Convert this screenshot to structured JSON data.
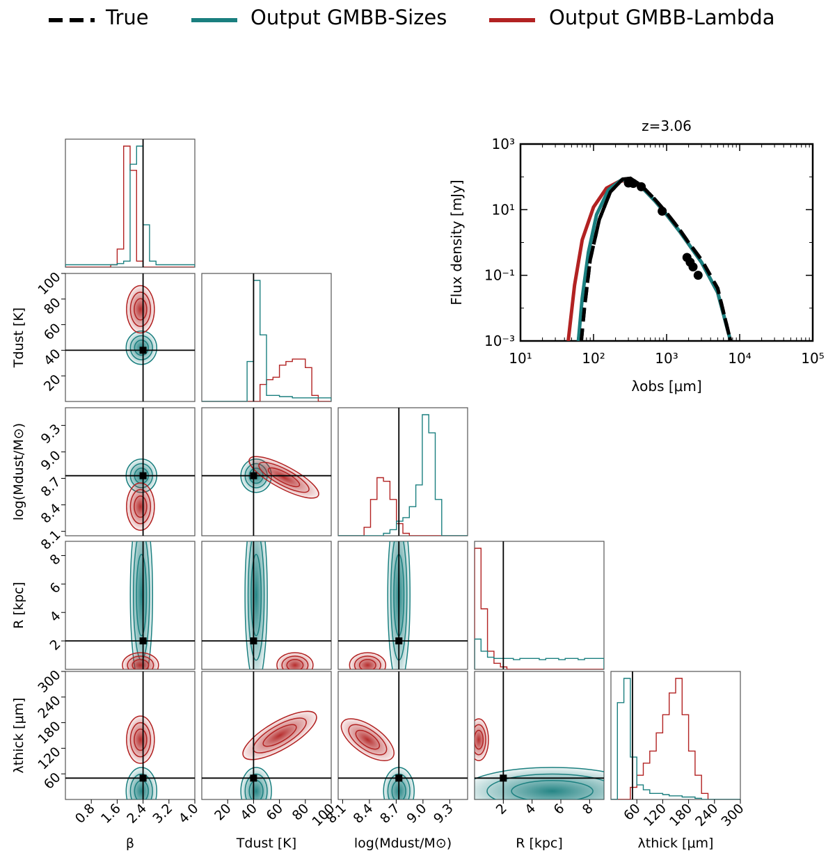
{
  "legend": [
    {
      "label": "True",
      "color": "#000000",
      "style": "dashed"
    },
    {
      "label": "Output GMBB-Sizes",
      "color": "#1a7f7f",
      "style": "solid"
    },
    {
      "label": "Output GMBB-Lambda",
      "color": "#b22222",
      "style": "solid"
    }
  ],
  "colors": {
    "sizes": "#1a7f7f",
    "lambda": "#b22222",
    "truth": "#000000"
  },
  "chart_data": [
    {
      "type": "line",
      "title": "z=3.06",
      "xlabel": "λobs [μm]",
      "ylabel": "Flux density [mJy]",
      "xscale": "log",
      "yscale": "log",
      "xlim": [
        10,
        100000
      ],
      "ylim": [
        0.001,
        1000
      ],
      "xticks": [
        "10¹",
        "10²",
        "10³",
        "10⁴",
        "10⁵"
      ],
      "yticks": [
        "10⁻³",
        "10⁻¹",
        "10¹",
        "10³"
      ],
      "series": [
        {
          "name": "True",
          "x": [
            68,
            75,
            90,
            120,
            170,
            250,
            320,
            450,
            700,
            1000,
            1500,
            2000,
            3000,
            5000,
            7500
          ],
          "y": [
            0.001,
            0.01,
            0.3,
            5,
            35,
            85,
            90,
            55,
            20,
            8,
            2.5,
            1.0,
            0.3,
            0.04,
            0.001
          ]
        },
        {
          "name": "Output GMBB-Sizes",
          "x": [
            62,
            70,
            85,
            110,
            160,
            240,
            320,
            450,
            700,
            1000,
            1500,
            2000,
            3000,
            5000,
            7500
          ],
          "y": [
            0.001,
            0.02,
            0.5,
            7,
            40,
            80,
            80,
            50,
            18,
            7,
            2.2,
            0.9,
            0.25,
            0.03,
            0.001
          ]
        },
        {
          "name": "Output GMBB-Lambda",
          "x": [
            45,
            55,
            70,
            100,
            150,
            230,
            300,
            450,
            700,
            1000,
            1500,
            2000,
            3000,
            5000,
            7500
          ],
          "y": [
            0.001,
            0.05,
            1.2,
            12,
            45,
            75,
            78,
            50,
            18,
            7,
            2.2,
            0.9,
            0.25,
            0.03,
            0.001
          ]
        }
      ],
      "points": {
        "name": "Observed",
        "x": [
          300,
          350,
          450,
          870,
          1900,
          2100,
          2300,
          2700
        ],
        "y": [
          65,
          63,
          50,
          9,
          0.35,
          0.25,
          0.18,
          0.1
        ]
      }
    },
    {
      "type": "corner",
      "parameters": [
        {
          "name": "beta",
          "label": "β",
          "lim": [
            0,
            4
          ],
          "truth": 2.4,
          "ticks": [
            "0.8",
            "1.6",
            "2.4",
            "3.2",
            "4.0"
          ],
          "tickvals": [
            0.8,
            1.6,
            2.4,
            3.2,
            4.0
          ]
        },
        {
          "name": "tdust",
          "label": "Tdust [K]",
          "lim": [
            0,
            100
          ],
          "truth": 40,
          "ticks": [
            "20",
            "40",
            "60",
            "80",
            "100"
          ],
          "tickvals": [
            20,
            40,
            60,
            80,
            100
          ]
        },
        {
          "name": "mdust",
          "label": "log(Mdust/M⊙)",
          "lim": [
            8.05,
            9.5
          ],
          "truth": 8.73,
          "ticks": [
            "8.1",
            "8.4",
            "8.7",
            "9.0",
            "9.3"
          ],
          "tickvals": [
            8.1,
            8.4,
            8.7,
            9.0,
            9.3
          ]
        },
        {
          "name": "r",
          "label": "R [kpc]",
          "lim": [
            0,
            9
          ],
          "truth": 2,
          "ticks": [
            "2",
            "4",
            "6",
            "8"
          ],
          "tickvals": [
            2,
            4,
            6,
            8
          ]
        },
        {
          "name": "lthick",
          "label": "λthick [μm]",
          "lim": [
            0,
            300
          ],
          "truth": 50,
          "ticks": [
            "60",
            "120",
            "180",
            "240",
            "300"
          ],
          "tickvals": [
            60,
            120,
            180,
            240,
            300
          ]
        }
      ],
      "histograms": [
        {
          "param": "beta",
          "sizes": [
            0.02,
            0.02,
            0.02,
            0.02,
            0.02,
            0.02,
            0.02,
            0.02,
            0.03,
            0.05,
            0.85,
            1.0,
            0.35,
            0.05,
            0.02,
            0.02,
            0.02,
            0.02,
            0.02,
            0.02
          ],
          "lambda": [
            0.0,
            0.0,
            0.0,
            0.0,
            0.0,
            0.0,
            0.0,
            0.02,
            0.15,
            1.0,
            0.8,
            0.05,
            0.0,
            0.0,
            0.0,
            0.0,
            0.0,
            0.0,
            0.0,
            0.0
          ]
        },
        {
          "param": "tdust",
          "sizes": [
            0.0,
            0.0,
            0.0,
            0.0,
            0.0,
            0.0,
            0.0,
            0.33,
            1.0,
            0.55,
            0.05,
            0.05,
            0.04,
            0.04,
            0.03,
            0.03,
            0.03,
            0.03,
            0.03,
            0.03
          ],
          "lambda": [
            0.0,
            0.0,
            0.0,
            0.0,
            0.0,
            0.0,
            0.0,
            0.0,
            0.0,
            0.14,
            0.18,
            0.2,
            0.3,
            0.33,
            0.35,
            0.35,
            0.28,
            0.05,
            0.0,
            0.0
          ]
        },
        {
          "param": "mdust",
          "sizes": [
            0.0,
            0.0,
            0.0,
            0.0,
            0.0,
            0.0,
            0.0,
            0.02,
            0.05,
            0.12,
            0.15,
            0.24,
            0.42,
            1.0,
            0.85,
            0.3,
            0.0,
            0.0,
            0.0,
            0.0
          ],
          "lambda": [
            0.0,
            0.0,
            0.0,
            0.0,
            0.07,
            0.3,
            0.48,
            0.45,
            0.3,
            0.1,
            0.02,
            0.0,
            0.0,
            0.0,
            0.0,
            0.0,
            0.0,
            0.0,
            0.0,
            0.0
          ]
        },
        {
          "param": "r",
          "sizes": [
            0.25,
            0.15,
            0.1,
            0.09,
            0.09,
            0.09,
            0.08,
            0.09,
            0.09,
            0.09,
            0.08,
            0.09,
            0.09,
            0.08,
            0.09,
            0.09,
            0.08,
            0.09,
            0.09,
            0.09
          ],
          "lambda": [
            1.0,
            0.5,
            0.15,
            0.05,
            0.02,
            0.0,
            0.0,
            0.0,
            0.0,
            0.0,
            0.0,
            0.0,
            0.0,
            0.0,
            0.0,
            0.0,
            0.0,
            0.0,
            0.0,
            0.0
          ]
        },
        {
          "param": "lthick",
          "sizes": [
            0.0,
            0.8,
            1.0,
            0.35,
            0.12,
            0.08,
            0.05,
            0.05,
            0.04,
            0.03,
            0.03,
            0.02,
            0.02,
            0.01,
            0.0,
            0.0,
            0.0,
            0.0,
            0.0,
            0.0
          ],
          "lambda": [
            0.0,
            0.0,
            0.0,
            0.1,
            0.2,
            0.3,
            0.4,
            0.55,
            0.7,
            0.88,
            1.0,
            0.7,
            0.4,
            0.2,
            0.05,
            0.0,
            0.0,
            0.0,
            0.0,
            0.0
          ]
        }
      ],
      "posteriors_2d": {
        "sizes": {
          "beta": 2.35,
          "tdust": 42,
          "mdust": 8.73,
          "r": 4.5,
          "lthick": 42
        },
        "lambda": {
          "beta": 2.32,
          "tdust": 72,
          "mdust": 8.38,
          "r": 0.5,
          "lthick": 140
        }
      }
    }
  ]
}
